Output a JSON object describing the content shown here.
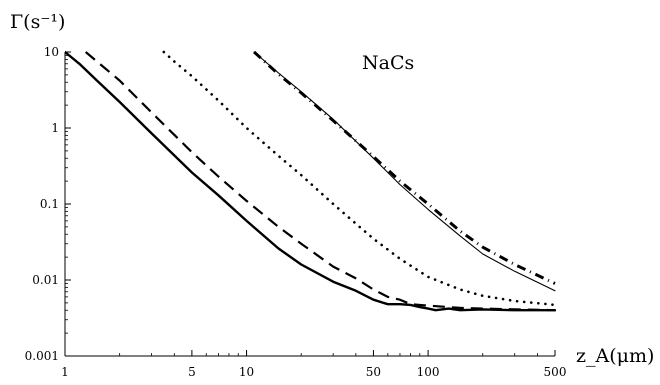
{
  "chart_data": {
    "type": "line",
    "title": "",
    "annotation": "NaCs",
    "ylabel": "Γ(s⁻¹)",
    "xlabel": "z_A(μm)",
    "x_scale": "log",
    "y_scale": "log",
    "xlim": [
      1,
      500
    ],
    "ylim": [
      0.001,
      10
    ],
    "x_ticks": [
      1,
      5,
      10,
      50,
      100,
      500
    ],
    "x_tick_labels": [
      "1",
      "5",
      "10",
      "50",
      "100",
      "500"
    ],
    "y_ticks": [
      0.001,
      0.01,
      0.1,
      1,
      10
    ],
    "y_tick_labels": [
      "0.001",
      "0.01",
      "0.1",
      "1",
      "10"
    ],
    "grid": false,
    "legend": false,
    "series": [
      {
        "style": "solid-thick",
        "x": [
          1,
          1.2,
          1.5,
          2,
          3,
          5,
          7,
          10,
          15,
          20,
          30,
          40,
          50,
          60,
          70,
          80,
          90,
          100,
          110,
          130,
          150,
          200,
          300,
          500
        ],
        "y": [
          10,
          7,
          4.2,
          2.2,
          0.85,
          0.26,
          0.13,
          0.06,
          0.026,
          0.016,
          0.0095,
          0.0072,
          0.0055,
          0.0048,
          0.0048,
          0.0047,
          0.0044,
          0.0042,
          0.004,
          0.0042,
          0.004,
          0.0041,
          0.004,
          0.004
        ]
      },
      {
        "style": "dashed",
        "x": [
          1.3,
          1.5,
          2,
          3,
          5,
          7,
          10,
          15,
          20,
          30,
          40,
          50,
          60,
          70,
          80,
          100,
          150,
          200,
          300,
          500
        ],
        "y": [
          10,
          7.5,
          4.2,
          1.6,
          0.48,
          0.23,
          0.11,
          0.05,
          0.03,
          0.015,
          0.0105,
          0.0075,
          0.006,
          0.0055,
          0.0048,
          0.0046,
          0.0043,
          0.0042,
          0.0041,
          0.004
        ]
      },
      {
        "style": "dotted",
        "x": [
          3.5,
          4,
          5,
          7,
          10,
          15,
          20,
          30,
          40,
          50,
          70,
          100,
          150,
          200,
          300,
          500
        ],
        "y": [
          10,
          7.5,
          4.8,
          2.3,
          1.0,
          0.43,
          0.24,
          0.1,
          0.055,
          0.035,
          0.019,
          0.011,
          0.0075,
          0.0062,
          0.0053,
          0.0047
        ]
      },
      {
        "style": "dash-dot-thick",
        "x": [
          11,
          15,
          20,
          30,
          50,
          70,
          100,
          150,
          200,
          300,
          500
        ],
        "y": [
          10,
          5.1,
          2.9,
          1.25,
          0.42,
          0.2,
          0.1,
          0.044,
          0.027,
          0.016,
          0.009
        ]
      },
      {
        "style": "solid-thin",
        "x": [
          11,
          15,
          20,
          30,
          50,
          70,
          100,
          150,
          200,
          300,
          500
        ],
        "y": [
          10,
          5.3,
          3.0,
          1.3,
          0.4,
          0.18,
          0.085,
          0.038,
          0.022,
          0.013,
          0.0072
        ]
      }
    ]
  }
}
